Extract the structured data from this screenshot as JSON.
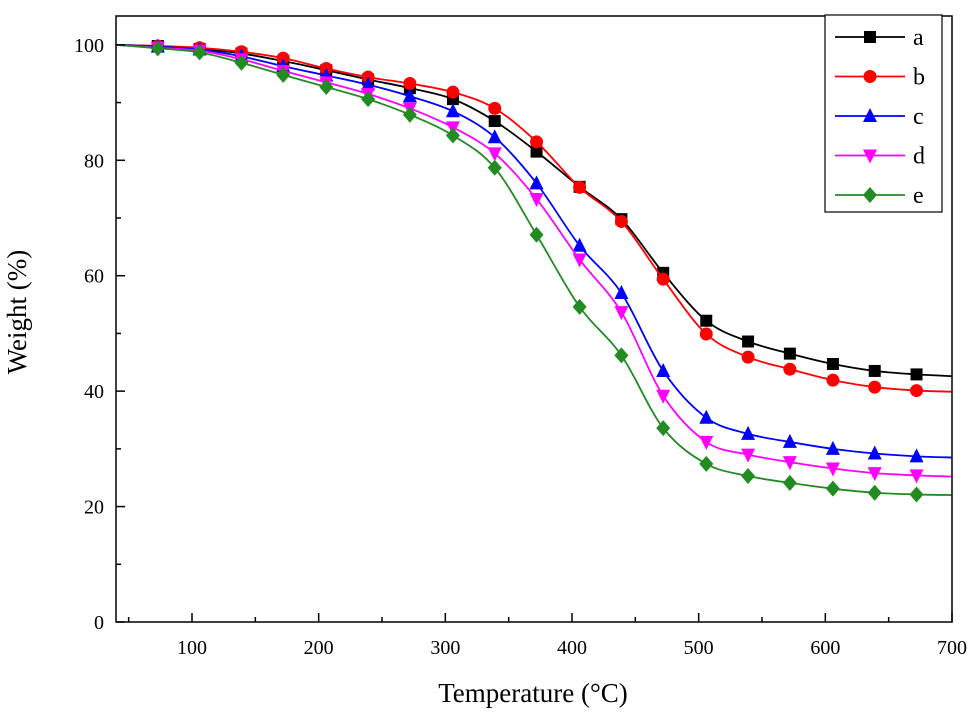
{
  "chart_data": {
    "type": "line",
    "title": "",
    "xlabel": "Temperature (°C)",
    "ylabel": "Weight (%)",
    "xlim": [
      40,
      700
    ],
    "ylim": [
      0,
      105
    ],
    "x_ticks": [
      100,
      200,
      300,
      400,
      500,
      600,
      700
    ],
    "y_ticks": [
      0,
      20,
      40,
      60,
      80,
      100
    ],
    "grid": false,
    "legend_position": "top-right",
    "series": [
      {
        "name": "a",
        "color": "#000000",
        "marker": "square",
        "x": [
          40,
          73,
          106,
          139,
          172,
          206,
          239,
          272,
          306,
          339,
          372,
          406,
          439,
          472,
          506,
          539,
          572,
          606,
          639,
          672,
          700
        ],
        "y": [
          100,
          99.8,
          99.3,
          98.5,
          97.2,
          95.6,
          94.0,
          92.5,
          90.6,
          86.8,
          81.5,
          75.4,
          69.8,
          60.5,
          52.2,
          48.6,
          46.5,
          44.7,
          43.5,
          42.9,
          42.6
        ]
      },
      {
        "name": "b",
        "color": "#ff0000",
        "marker": "circle",
        "x": [
          40,
          73,
          106,
          139,
          172,
          206,
          239,
          272,
          306,
          339,
          372,
          406,
          439,
          472,
          506,
          539,
          572,
          606,
          639,
          672,
          700
        ],
        "y": [
          100,
          99.8,
          99.5,
          98.8,
          97.7,
          95.9,
          94.4,
          93.3,
          91.8,
          89.0,
          83.2,
          75.3,
          69.4,
          59.4,
          49.9,
          45.9,
          43.8,
          41.9,
          40.7,
          40.1,
          39.9
        ]
      },
      {
        "name": "c",
        "color": "#0000ff",
        "marker": "triangle-up",
        "x": [
          40,
          73,
          106,
          139,
          172,
          206,
          239,
          272,
          306,
          339,
          372,
          406,
          439,
          472,
          506,
          539,
          572,
          606,
          639,
          672,
          700
        ],
        "y": [
          100,
          99.7,
          99.2,
          98.0,
          96.3,
          94.7,
          93.1,
          91.1,
          88.5,
          84.0,
          76.0,
          65.2,
          57.0,
          43.5,
          35.4,
          32.6,
          31.2,
          30.0,
          29.2,
          28.7,
          28.5
        ]
      },
      {
        "name": "d",
        "color": "#ff00ff",
        "marker": "triangle-down",
        "x": [
          40,
          73,
          106,
          139,
          172,
          206,
          239,
          272,
          306,
          339,
          372,
          406,
          439,
          472,
          506,
          539,
          572,
          606,
          639,
          672,
          700
        ],
        "y": [
          100,
          99.5,
          99.0,
          97.5,
          95.5,
          93.5,
          91.5,
          89.0,
          85.7,
          81.2,
          73.3,
          62.8,
          53.7,
          39.2,
          31.2,
          29.0,
          27.7,
          26.6,
          25.8,
          25.4,
          25.2
        ]
      },
      {
        "name": "e",
        "color": "#228b22",
        "marker": "diamond",
        "x": [
          40,
          73,
          106,
          139,
          172,
          206,
          239,
          272,
          306,
          339,
          372,
          406,
          439,
          472,
          506,
          539,
          572,
          606,
          639,
          672,
          700
        ],
        "y": [
          100,
          99.4,
          98.7,
          96.9,
          94.8,
          92.7,
          90.6,
          87.9,
          84.3,
          78.7,
          67.1,
          54.6,
          46.2,
          33.6,
          27.4,
          25.3,
          24.1,
          23.1,
          22.4,
          22.1,
          22.0
        ]
      }
    ]
  }
}
